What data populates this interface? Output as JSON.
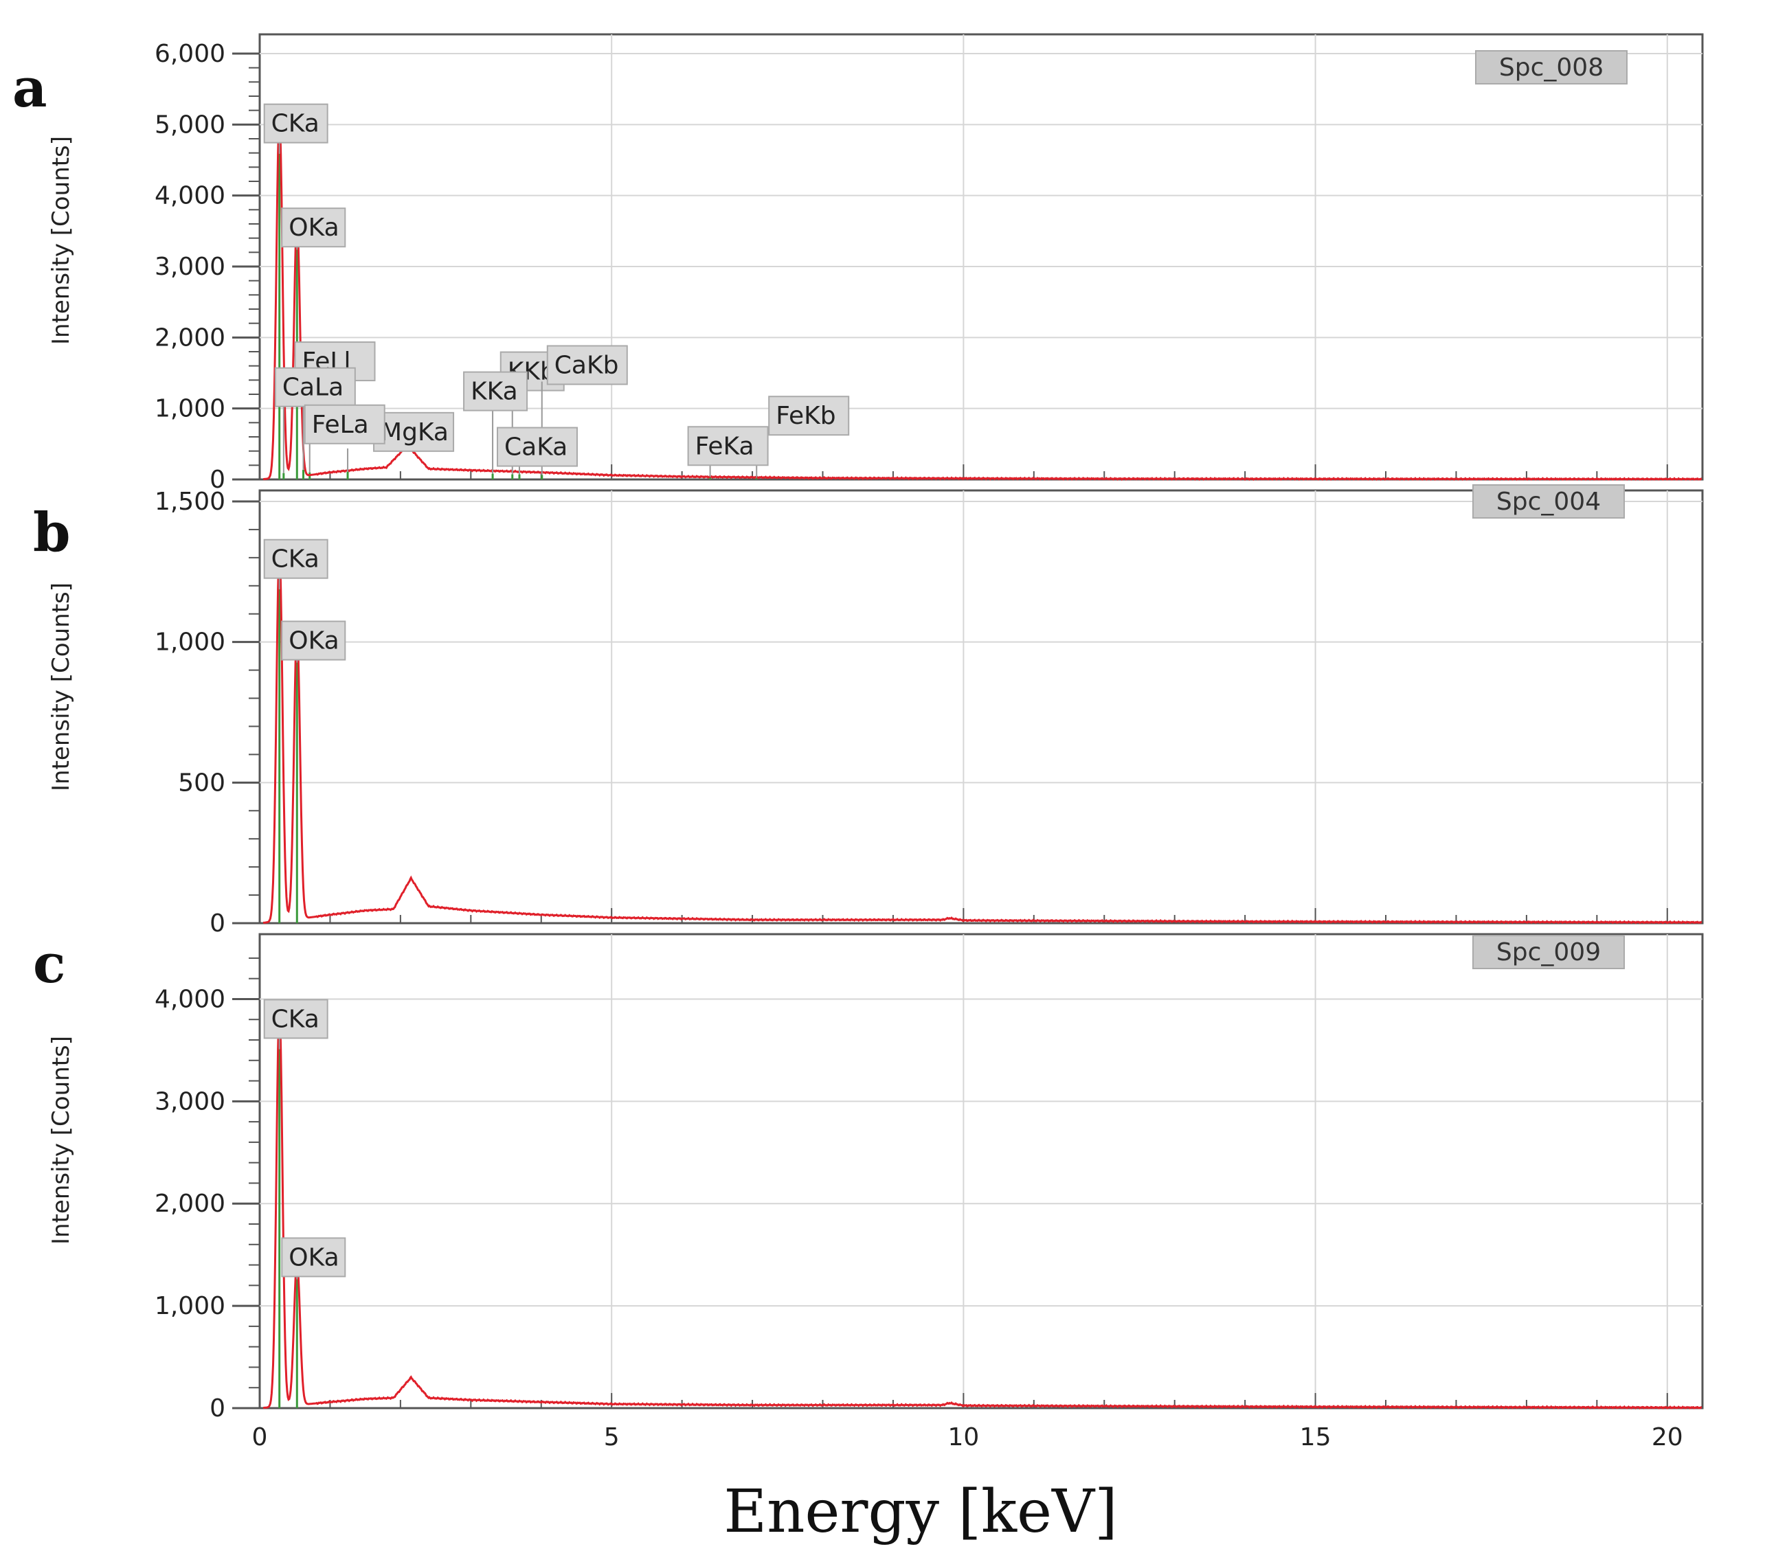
{
  "chart_data": {
    "type": "line",
    "xlabel": "Energy [keV]",
    "xlim": [
      0,
      20.5
    ],
    "x_ticks": [
      0,
      5,
      10,
      15,
      20
    ],
    "x_tick_labels": [
      "0",
      "5",
      "10",
      "15",
      "20"
    ],
    "line_color": "#e0202a",
    "element_line_color": "#3a9a3a",
    "panels": [
      {
        "letter": "a",
        "spectrum": "Spc_008",
        "ylabel": "Intensity [Counts]",
        "ylim": [
          0,
          6000
        ],
        "y_ticks": [
          0,
          1000,
          2000,
          3000,
          4000,
          5000,
          6000
        ],
        "y_tick_labels": [
          "0",
          "1,000",
          "2,000",
          "3,000",
          "4,000",
          "5,000",
          "6,000"
        ],
        "peaks": [
          {
            "label": "CKa",
            "energy": 0.28,
            "intensity": 5100
          },
          {
            "label": "OKa",
            "energy": 0.53,
            "intensity": 3600
          },
          {
            "label": "FeLl",
            "energy": 0.62,
            "intensity": 150
          },
          {
            "label": "MgKa",
            "energy": 1.25,
            "intensity": 120
          },
          {
            "label": "CaLa",
            "energy": 0.34,
            "intensity": 100
          },
          {
            "label": "FeLa",
            "energy": 0.71,
            "intensity": 110
          },
          {
            "label": "KKb",
            "energy": 3.59,
            "intensity": 80
          },
          {
            "label": "CaKb",
            "energy": 4.01,
            "intensity": 70
          },
          {
            "label": "KKa",
            "energy": 3.31,
            "intensity": 90
          },
          {
            "label": "CaKa",
            "energy": 3.69,
            "intensity": 80
          },
          {
            "label": "FeKb",
            "energy": 7.06,
            "intensity": 30
          },
          {
            "label": "FeKa",
            "energy": 6.4,
            "intensity": 40
          }
        ],
        "background": [
          [
            0.7,
            60
          ],
          [
            1.0,
            100
          ],
          [
            1.5,
            150
          ],
          [
            1.8,
            170
          ],
          [
            2.1,
            480
          ],
          [
            2.4,
            150
          ],
          [
            3.0,
            130
          ],
          [
            4.0,
            100
          ],
          [
            5.0,
            60
          ],
          [
            6.0,
            40
          ],
          [
            8.0,
            20
          ],
          [
            12.0,
            10
          ],
          [
            20.5,
            5
          ]
        ]
      },
      {
        "letter": "b",
        "spectrum": "Spc_004",
        "ylabel": "Intensity [Counts]",
        "ylim": [
          0,
          1500
        ],
        "y_ticks": [
          0,
          500,
          1000,
          1500
        ],
        "y_tick_labels": [
          "0",
          "500",
          "1,000",
          "1,500"
        ],
        "peaks": [
          {
            "label": "CKa",
            "energy": 0.28,
            "intensity": 1320
          },
          {
            "label": "OKa",
            "energy": 0.53,
            "intensity": 1030
          }
        ],
        "background": [
          [
            0.7,
            20
          ],
          [
            1.0,
            30
          ],
          [
            1.5,
            45
          ],
          [
            1.9,
            50
          ],
          [
            2.15,
            160
          ],
          [
            2.4,
            60
          ],
          [
            3.0,
            45
          ],
          [
            4.0,
            30
          ],
          [
            5.0,
            20
          ],
          [
            7.0,
            12
          ],
          [
            9.7,
            12
          ],
          [
            9.8,
            18
          ],
          [
            10.0,
            10
          ],
          [
            14.0,
            6
          ],
          [
            20.5,
            3
          ]
        ]
      },
      {
        "letter": "c",
        "spectrum": "Spc_009",
        "ylabel": "Intensity [Counts]",
        "ylim": [
          0,
          4500
        ],
        "y_ticks": [
          0,
          1000,
          2000,
          3000,
          4000
        ],
        "y_tick_labels": [
          "0",
          "1,000",
          "2,000",
          "3,000",
          "4,000"
        ],
        "peaks": [
          {
            "label": "CKa",
            "energy": 0.28,
            "intensity": 3900
          },
          {
            "label": "OKa",
            "energy": 0.53,
            "intensity": 1400
          }
        ],
        "background": [
          [
            0.7,
            40
          ],
          [
            1.0,
            60
          ],
          [
            1.5,
            90
          ],
          [
            1.9,
            100
          ],
          [
            2.15,
            300
          ],
          [
            2.4,
            100
          ],
          [
            3.0,
            80
          ],
          [
            4.0,
            60
          ],
          [
            5.0,
            40
          ],
          [
            7.0,
            30
          ],
          [
            9.7,
            30
          ],
          [
            9.8,
            50
          ],
          [
            10.0,
            25
          ],
          [
            14.0,
            15
          ],
          [
            20.5,
            5
          ]
        ]
      }
    ]
  }
}
